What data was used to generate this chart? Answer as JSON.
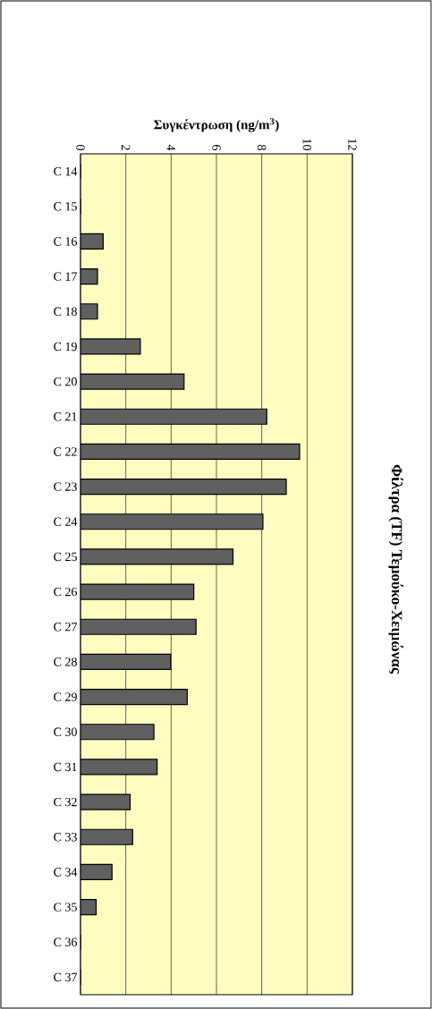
{
  "chart_data": {
    "type": "bar",
    "orientation": "horizontal",
    "title": "Φίλτρα (TF) Τεμούκο-Χειμώνας",
    "xlabel": "Συγκέντρωση (ng/m$^{3}$)",
    "categories": [
      "C 14",
      "C 15",
      "C 16",
      "C 17",
      "C 18",
      "C 19",
      "C 20",
      "C 21",
      "C 22",
      "C 23",
      "C 24",
      "C 25",
      "C 26",
      "C 27",
      "C 28",
      "C 29",
      "C 30",
      "C 31",
      "C 32",
      "C 33",
      "C 34",
      "C 35",
      "C 36",
      "C 37"
    ],
    "values": [
      0,
      0,
      1.0,
      0.75,
      0.75,
      2.64,
      4.57,
      8.22,
      9.67,
      9.08,
      8.05,
      6.73,
      5.0,
      5.1,
      3.98,
      4.71,
      3.24,
      3.38,
      2.19,
      2.3,
      1.39,
      0.69,
      0,
      0
    ],
    "color": "#606060",
    "xlim": [
      0,
      12
    ],
    "xticks": [
      0,
      2,
      4,
      6,
      8,
      10,
      12
    ],
    "grid": "x"
  }
}
